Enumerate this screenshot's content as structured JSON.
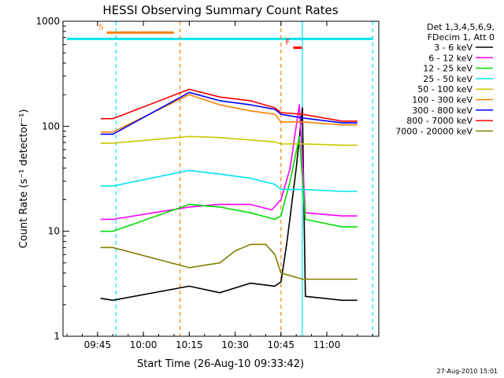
{
  "chart_data": {
    "type": "line",
    "title": "HESSI Observing Summary Count Rates",
    "xlabel": "Start Time (26-Aug-10 09:33:42)",
    "ylabel": "Count Rate (s⁻¹ detector⁻¹)",
    "yscale": "log",
    "ylim": [
      1,
      1000
    ],
    "xlim": [
      "09:33:42",
      "11:17:00"
    ],
    "x_ticks": [
      "09:45",
      "10:00",
      "10:15",
      "10:30",
      "10:45",
      "11:00"
    ],
    "y_ticks": [
      "1",
      "10",
      "100",
      "1000"
    ],
    "legend_header": [
      "Det 1,3,4,5,6,9,",
      "FDecim 1, Att 0"
    ],
    "legend_position": "right",
    "timestamp": "27-Aug-2010 15:01",
    "flags": [
      {
        "label": "S",
        "start": "09:48",
        "end": "10:10",
        "level": 780,
        "color": "#ff7f00"
      },
      {
        "label": "N",
        "start": "09:35",
        "end": "11:15",
        "level": 680,
        "color": "#00e5ee"
      },
      {
        "label": "F",
        "start": "10:49",
        "end": "10:52",
        "level": 560,
        "color": "#ff0000"
      }
    ],
    "markers": [
      {
        "time": "09:51",
        "color": "#00e5ee",
        "style": "dashed"
      },
      {
        "time": "10:12",
        "color": "#ff7f00",
        "style": "dashed"
      },
      {
        "time": "10:45",
        "color": "#ff7f00",
        "style": "dashed"
      },
      {
        "time": "10:52",
        "color": "#00e5ee",
        "style": "solid"
      },
      {
        "time": "11:15",
        "color": "#00e5ee",
        "style": "dashed"
      }
    ],
    "series": [
      {
        "name": "3 - 6 keV",
        "color": "#000000",
        "points": [
          [
            "09:46",
            2.3
          ],
          [
            "09:50",
            2.2
          ],
          [
            "10:15",
            3.0
          ],
          [
            "10:25",
            2.6
          ],
          [
            "10:35",
            3.2
          ],
          [
            "10:43",
            3.0
          ],
          [
            "10:45",
            3.3
          ],
          [
            "10:47",
            8
          ],
          [
            "10:50",
            40
          ],
          [
            "10:52",
            150
          ],
          [
            "10:53",
            2.4
          ],
          [
            "11:05",
            2.2
          ],
          [
            "11:10",
            2.2
          ]
        ]
      },
      {
        "name": "6 - 12 keV",
        "color": "#ff00ff",
        "points": [
          [
            "09:46",
            13
          ],
          [
            "09:50",
            13
          ],
          [
            "10:15",
            17
          ],
          [
            "10:25",
            18
          ],
          [
            "10:35",
            18
          ],
          [
            "10:42",
            16
          ],
          [
            "10:45",
            20
          ],
          [
            "10:48",
            40
          ],
          [
            "10:51",
            160
          ],
          [
            "10:53",
            15
          ],
          [
            "11:05",
            14
          ],
          [
            "11:10",
            14
          ]
        ]
      },
      {
        "name": "12 - 25 keV",
        "color": "#00dd00",
        "points": [
          [
            "09:46",
            10
          ],
          [
            "09:50",
            10
          ],
          [
            "10:15",
            18
          ],
          [
            "10:25",
            17
          ],
          [
            "10:35",
            15
          ],
          [
            "10:43",
            13
          ],
          [
            "10:45",
            14
          ],
          [
            "10:48",
            30
          ],
          [
            "10:51",
            80
          ],
          [
            "10:53",
            13
          ],
          [
            "11:05",
            11
          ],
          [
            "11:10",
            11
          ]
        ]
      },
      {
        "name": "25 - 50 keV",
        "color": "#00e5ee",
        "points": [
          [
            "09:46",
            27
          ],
          [
            "09:50",
            27
          ],
          [
            "10:15",
            38
          ],
          [
            "10:25",
            35
          ],
          [
            "10:35",
            32
          ],
          [
            "10:43",
            28
          ],
          [
            "10:45",
            25
          ],
          [
            "10:52",
            25
          ],
          [
            "11:05",
            24
          ],
          [
            "11:10",
            24
          ]
        ]
      },
      {
        "name": "50 - 100 keV",
        "color": "#c8c800",
        "points": [
          [
            "09:46",
            69
          ],
          [
            "09:50",
            69
          ],
          [
            "10:15",
            80
          ],
          [
            "10:25",
            78
          ],
          [
            "10:35",
            74
          ],
          [
            "10:43",
            71
          ],
          [
            "10:45",
            68
          ],
          [
            "10:52",
            68
          ],
          [
            "11:05",
            66
          ],
          [
            "11:10",
            66
          ]
        ]
      },
      {
        "name": "100 - 300 keV",
        "color": "#ff7f00",
        "points": [
          [
            "09:46",
            88
          ],
          [
            "09:50",
            88
          ],
          [
            "10:15",
            200
          ],
          [
            "10:25",
            160
          ],
          [
            "10:35",
            140
          ],
          [
            "10:43",
            130
          ],
          [
            "10:45",
            110
          ],
          [
            "10:52",
            110
          ],
          [
            "11:05",
            103
          ],
          [
            "11:10",
            103
          ]
        ]
      },
      {
        "name": "300 - 800 keV",
        "color": "#0000ff",
        "points": [
          [
            "09:46",
            84
          ],
          [
            "09:50",
            84
          ],
          [
            "10:15",
            210
          ],
          [
            "10:25",
            175
          ],
          [
            "10:35",
            160
          ],
          [
            "10:43",
            145
          ],
          [
            "10:45",
            130
          ],
          [
            "10:52",
            120
          ],
          [
            "11:05",
            108
          ],
          [
            "11:10",
            108
          ]
        ]
      },
      {
        "name": "800 - 7000 keV",
        "color": "#ff0000",
        "points": [
          [
            "09:46",
            118
          ],
          [
            "09:50",
            118
          ],
          [
            "10:15",
            225
          ],
          [
            "10:25",
            190
          ],
          [
            "10:35",
            175
          ],
          [
            "10:43",
            150
          ],
          [
            "10:45",
            135
          ],
          [
            "10:52",
            130
          ],
          [
            "11:05",
            112
          ],
          [
            "11:10",
            112
          ]
        ]
      },
      {
        "name": "7000 - 20000 keV",
        "color": "#808000",
        "points": [
          [
            "09:46",
            7
          ],
          [
            "09:50",
            7
          ],
          [
            "10:15",
            4.5
          ],
          [
            "10:25",
            5
          ],
          [
            "10:30",
            6.5
          ],
          [
            "10:35",
            7.5
          ],
          [
            "10:40",
            7.5
          ],
          [
            "10:43",
            6
          ],
          [
            "10:45",
            4
          ],
          [
            "10:52",
            3.5
          ],
          [
            "11:05",
            3.5
          ],
          [
            "11:10",
            3.5
          ]
        ]
      }
    ]
  }
}
